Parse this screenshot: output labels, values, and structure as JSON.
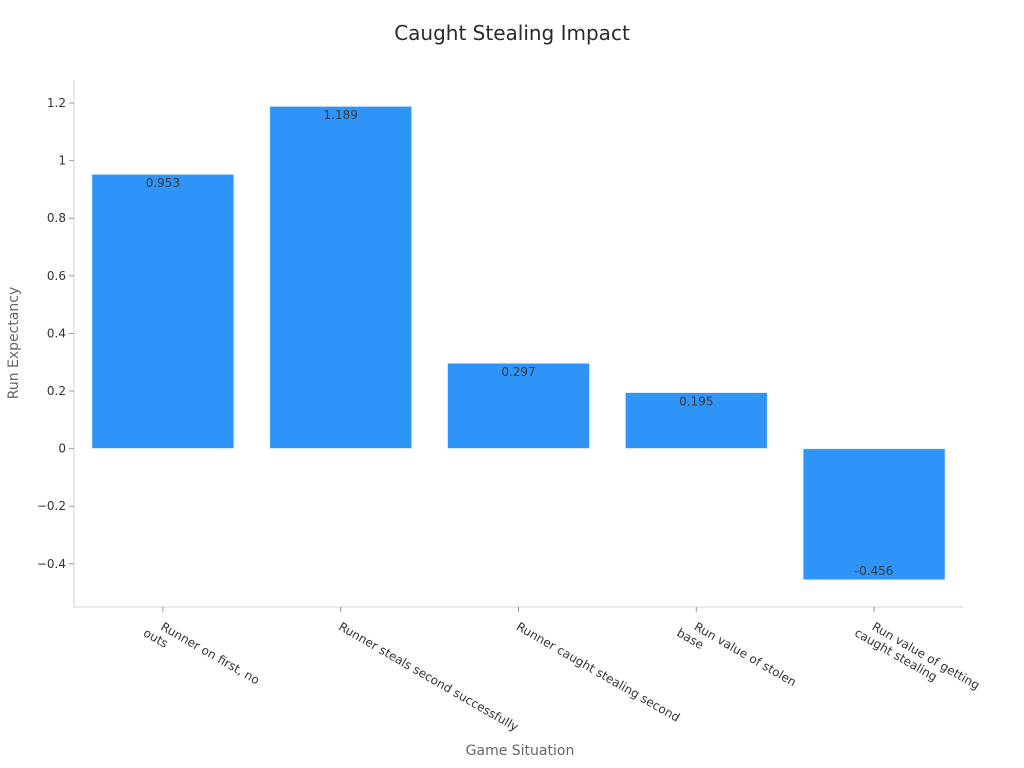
{
  "chart_data": {
    "type": "bar",
    "title": "Caught Stealing Impact",
    "xlabel": "Game Situation",
    "ylabel": "Run Expectancy",
    "categories": [
      [
        "Runner on first, no",
        "outs"
      ],
      [
        "Runner steals second successfully"
      ],
      [
        "Runner caught stealing second"
      ],
      [
        "Run value of stolen",
        "base"
      ],
      [
        "Run value of getting",
        "caught stealing"
      ]
    ],
    "values": [
      0.953,
      1.189,
      0.297,
      0.195,
      -0.456
    ],
    "value_labels": [
      "0.953",
      "1.189",
      "0.297",
      "0.195",
      "-0.456"
    ],
    "ylim": [
      -0.55,
      1.28
    ],
    "yticks": [
      -0.4,
      -0.2,
      0,
      0.2,
      0.4,
      0.6,
      0.8,
      1,
      1.2
    ],
    "ytick_labels": [
      "−0.4",
      "−0.2",
      "0",
      "0.2",
      "0.4",
      "0.6",
      "0.8",
      "1",
      "1.2"
    ],
    "bar_color": "#2f94f7",
    "grid": false,
    "legend": "none"
  }
}
